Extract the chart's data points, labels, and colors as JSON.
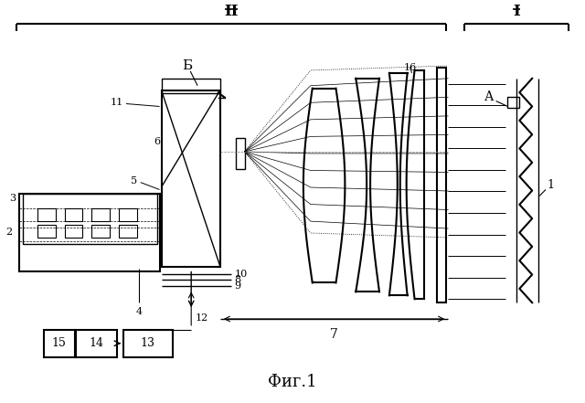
{
  "bg_color": "#ffffff",
  "line_color": "#000000",
  "title": "Фиг.1",
  "label_B": "Б",
  "label_A": "А",
  "label_II": "II",
  "label_I": "I",
  "labels": {
    "1": "1",
    "2": "2",
    "3": "3",
    "4": "4",
    "5": "5",
    "6": "6",
    "7": "7",
    "8": "8",
    "9": "9",
    "10": "10",
    "11": "11",
    "12": "12",
    "13": "13",
    "14": "14",
    "15": "15",
    "16": "16"
  }
}
